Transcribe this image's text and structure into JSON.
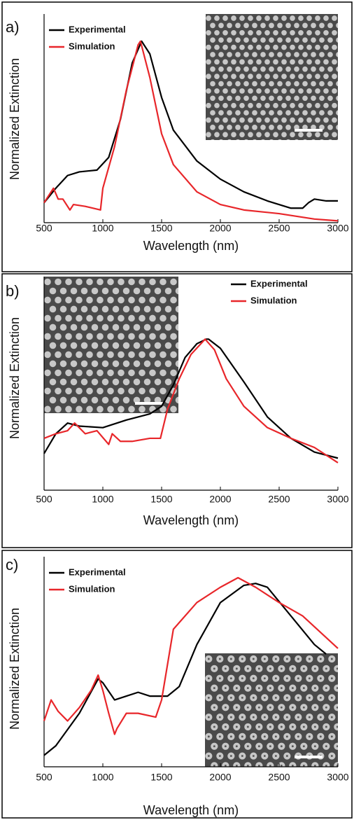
{
  "chart_data": [
    {
      "type": "line",
      "label": "a)",
      "x_label": "Wavelength (nm)",
      "y_label": "Normalized Extinction",
      "xlim": [
        500,
        3000
      ],
      "xticks": [
        500,
        1000,
        1500,
        2000,
        2500,
        3000
      ],
      "ylim": [
        0,
        1.15
      ],
      "legend": "upper left",
      "series": [
        {
          "name": "Experimental",
          "color": "#000000",
          "x": [
            500,
            600,
            700,
            800,
            950,
            1050,
            1150,
            1250,
            1330,
            1400,
            1500,
            1600,
            1800,
            2000,
            2200,
            2400,
            2600,
            2700,
            2750,
            2800,
            2900,
            3000
          ],
          "values": [
            0.11,
            0.19,
            0.26,
            0.28,
            0.29,
            0.36,
            0.57,
            0.88,
            1.0,
            0.93,
            0.69,
            0.51,
            0.34,
            0.24,
            0.17,
            0.12,
            0.08,
            0.08,
            0.11,
            0.13,
            0.12,
            0.12
          ]
        },
        {
          "name": "Simulation",
          "color": "#e8262a",
          "x": [
            500,
            560,
            580,
            620,
            660,
            720,
            750,
            850,
            980,
            1000,
            1100,
            1200,
            1300,
            1320,
            1400,
            1500,
            1600,
            1800,
            2000,
            2200,
            2500,
            2800,
            3000
          ],
          "values": [
            0.11,
            0.17,
            0.19,
            0.13,
            0.13,
            0.07,
            0.1,
            0.09,
            0.07,
            0.19,
            0.42,
            0.73,
            0.98,
            1.0,
            0.8,
            0.49,
            0.32,
            0.17,
            0.1,
            0.07,
            0.05,
            0.02,
            0.01
          ]
        }
      ]
    },
    {
      "type": "line",
      "label": "b)",
      "x_label": "Wavelength (nm)",
      "y_label": "Normalized Extinction",
      "xlim": [
        500,
        3000
      ],
      "xticks": [
        500,
        1000,
        1500,
        2000,
        2500,
        3000
      ],
      "ylim": [
        0,
        1.4
      ],
      "legend": "upper right",
      "series": [
        {
          "name": "Experimental",
          "color": "#000000",
          "x": [
            500,
            600,
            700,
            800,
            1000,
            1200,
            1400,
            1500,
            1600,
            1700,
            1800,
            1880,
            1900,
            2000,
            2200,
            2400,
            2600,
            2800,
            3000
          ],
          "values": [
            0.24,
            0.37,
            0.44,
            0.42,
            0.41,
            0.46,
            0.5,
            0.55,
            0.69,
            0.87,
            0.96,
            0.99,
            0.99,
            0.93,
            0.71,
            0.48,
            0.34,
            0.25,
            0.21
          ]
        },
        {
          "name": "Simulation",
          "color": "#e8262a",
          "x": [
            500,
            600,
            700,
            760,
            850,
            950,
            1050,
            1080,
            1150,
            1250,
            1400,
            1490,
            1550,
            1650,
            1750,
            1870,
            1950,
            2050,
            2200,
            2400,
            2600,
            2800,
            3000
          ],
          "values": [
            0.34,
            0.37,
            0.39,
            0.44,
            0.37,
            0.39,
            0.3,
            0.37,
            0.32,
            0.32,
            0.34,
            0.34,
            0.53,
            0.73,
            0.89,
            0.99,
            0.92,
            0.73,
            0.55,
            0.41,
            0.34,
            0.28,
            0.18
          ]
        }
      ]
    },
    {
      "type": "line",
      "label": "c)",
      "x_label": "Wavelength (nm)",
      "y_label": "Normalized Extinction",
      "xlim": [
        500,
        3000
      ],
      "xticks": [
        500,
        1000,
        1500,
        2000,
        2500,
        3000
      ],
      "ylim": [
        0,
        1.1
      ],
      "legend": "upper left",
      "series": [
        {
          "name": "Experimental",
          "color": "#000000",
          "x": [
            500,
            600,
            800,
            960,
            1000,
            1100,
            1200,
            1300,
            1400,
            1550,
            1650,
            1800,
            2000,
            2200,
            2300,
            2400,
            2600,
            2800,
            2900
          ],
          "values": [
            0.06,
            0.11,
            0.28,
            0.46,
            0.44,
            0.35,
            0.37,
            0.39,
            0.37,
            0.37,
            0.42,
            0.64,
            0.86,
            0.95,
            0.96,
            0.94,
            0.79,
            0.64,
            0.59
          ]
        },
        {
          "name": "Simulation",
          "color": "#e8262a",
          "x": [
            500,
            560,
            620,
            700,
            800,
            900,
            960,
            1000,
            1050,
            1100,
            1120,
            1200,
            1300,
            1450,
            1500,
            1600,
            1800,
            2000,
            2150,
            2300,
            2500,
            2700,
            3000
          ],
          "values": [
            0.24,
            0.35,
            0.29,
            0.24,
            0.31,
            0.4,
            0.48,
            0.4,
            0.28,
            0.17,
            0.2,
            0.28,
            0.28,
            0.26,
            0.35,
            0.72,
            0.86,
            0.94,
            0.99,
            0.94,
            0.86,
            0.79,
            0.62
          ]
        }
      ]
    }
  ]
}
